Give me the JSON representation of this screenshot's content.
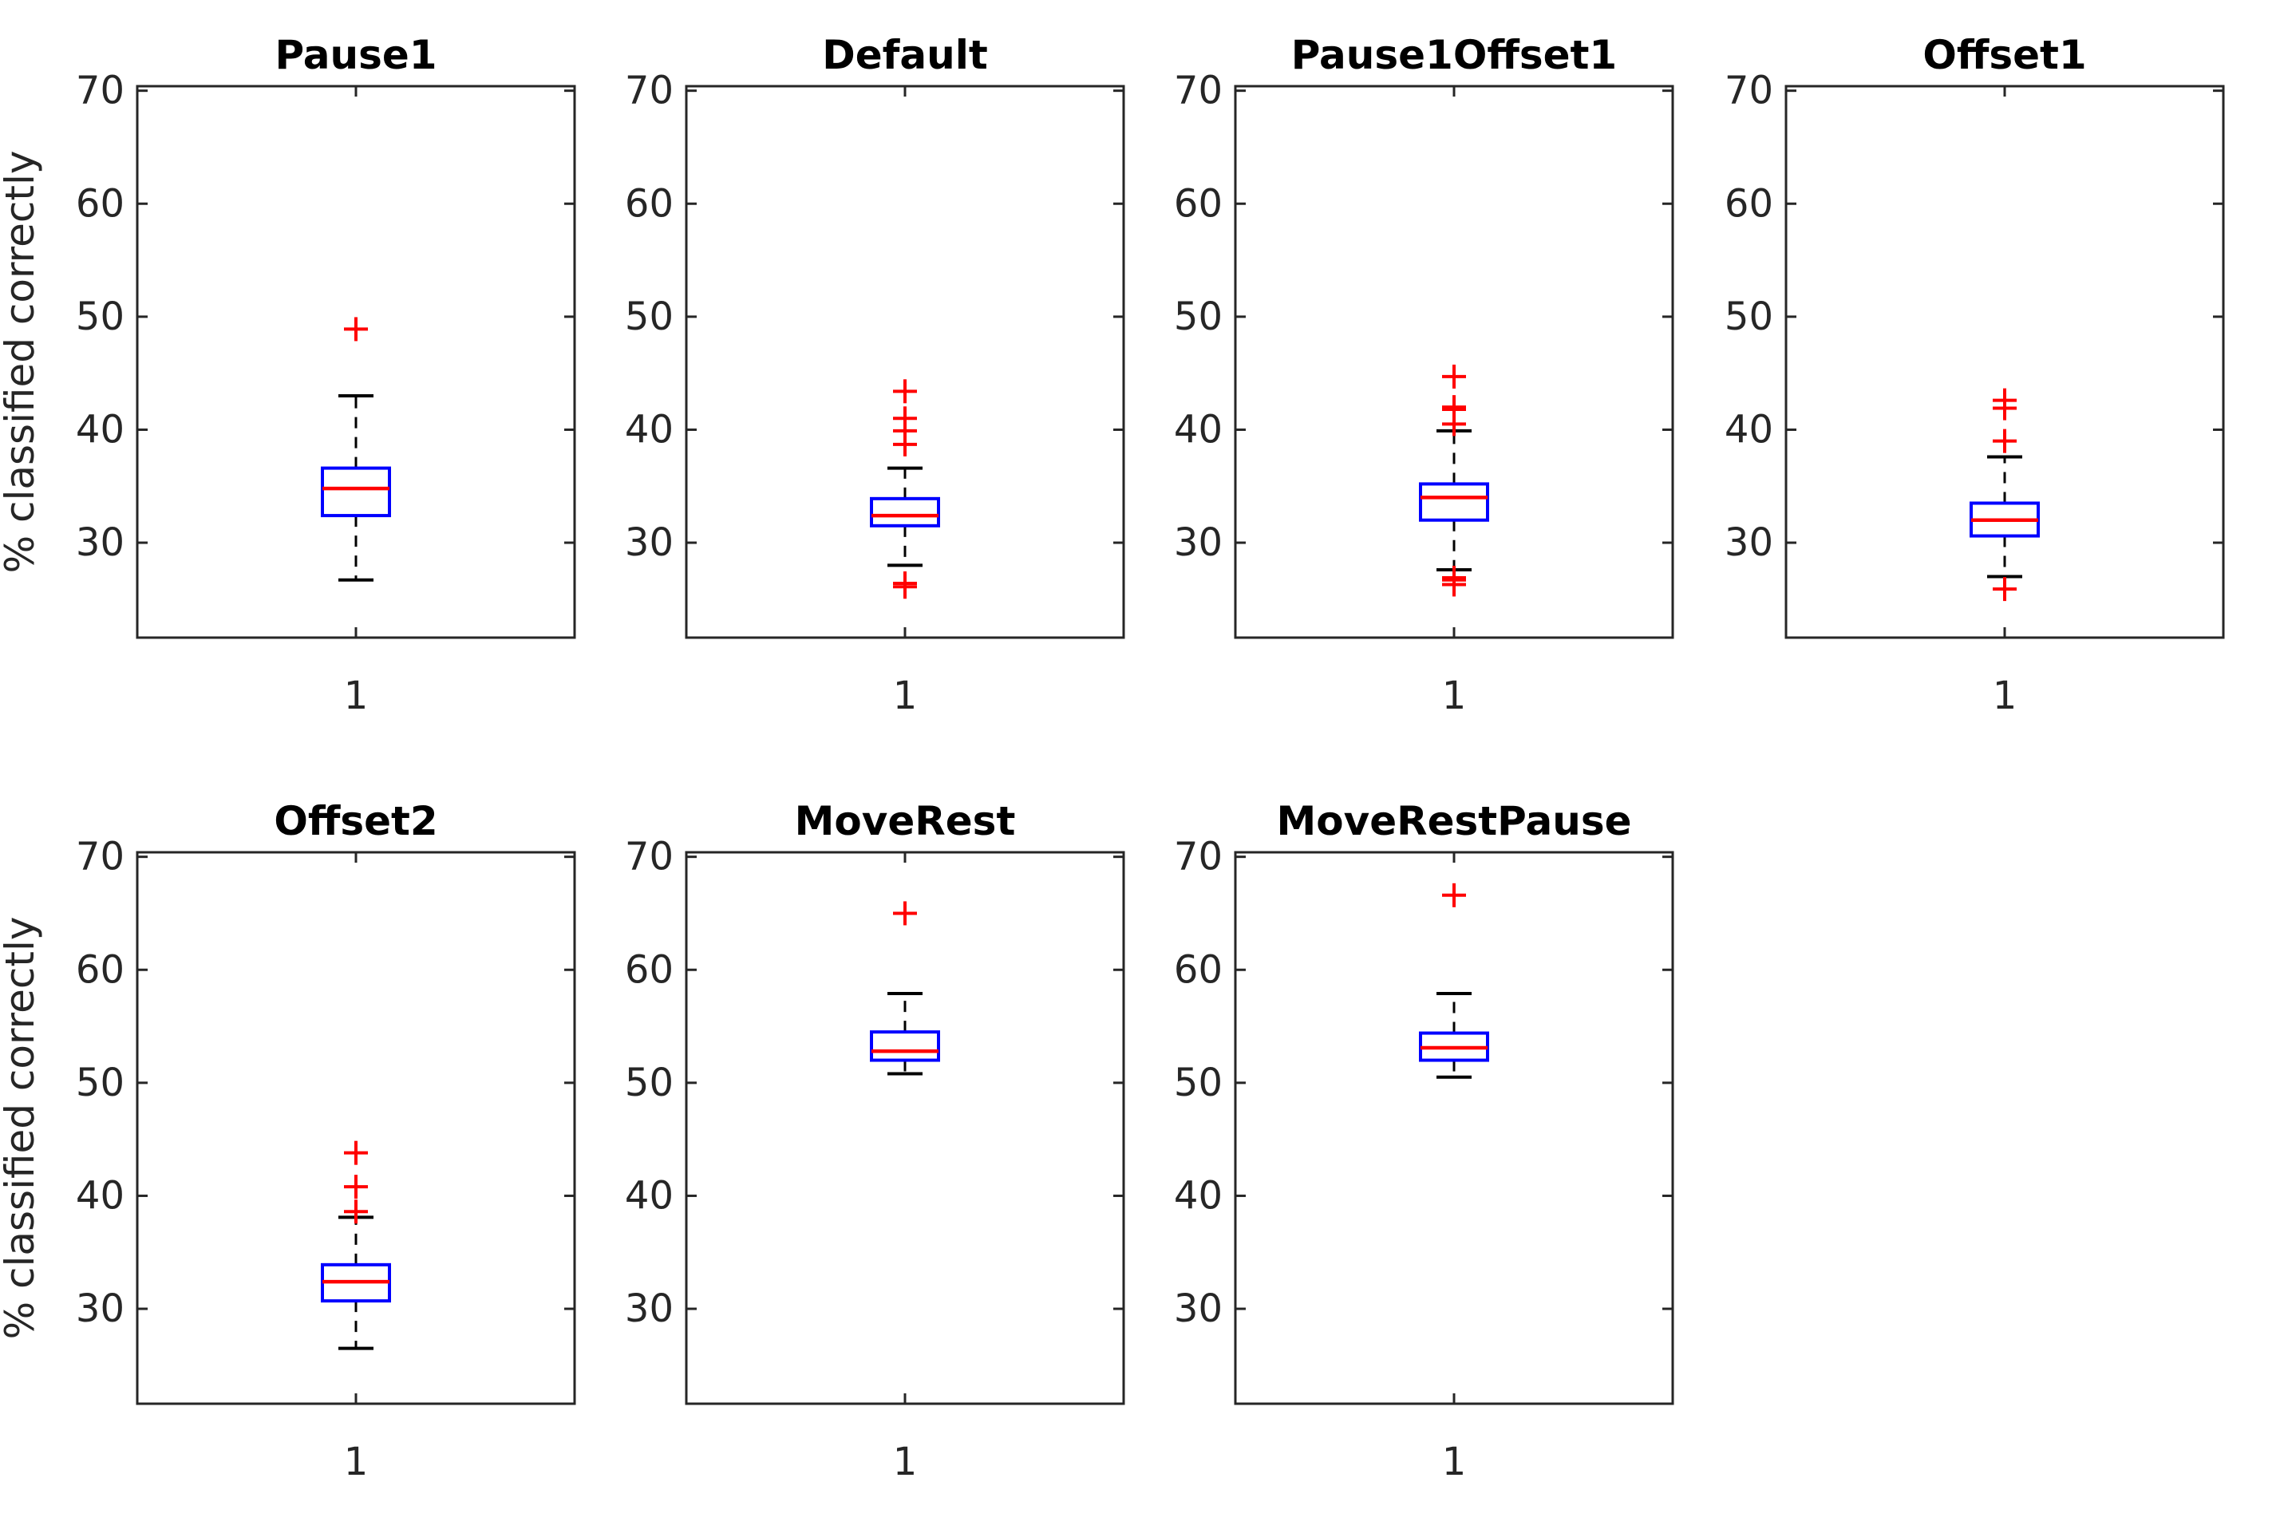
{
  "figure": {
    "background": "#ffffff",
    "ylabel": "% classified correctly",
    "xtick_label": "1",
    "ytick_labels": [
      "70",
      "60",
      "50",
      "40",
      "30"
    ]
  },
  "colors": {
    "box": "#0000ff",
    "median": "#ff0000",
    "outlier": "#ff0000",
    "whisker": "#000000",
    "cap": "#000000",
    "spine": "#262626",
    "tick_text": "#262626",
    "title_text": "#000000"
  },
  "chart_data": {
    "type": "boxplot-grid",
    "grid": [
      2,
      4
    ],
    "ylim": [
      21.6,
      70.4
    ],
    "yticks": [
      70,
      60,
      50,
      40,
      30
    ],
    "ylabel": "% classified correctly",
    "xtick_label": "1",
    "subplots": [
      {
        "title": "Pause1",
        "row": 0,
        "col": 0,
        "show_ylabel": true,
        "whisker_low": 26.7,
        "q1": 32.4,
        "median": 34.8,
        "q3": 36.6,
        "whisker_high": 43.0,
        "outliers_high": [
          48.9
        ],
        "outliers_low": []
      },
      {
        "title": "Default",
        "row": 0,
        "col": 1,
        "show_ylabel": false,
        "whisker_low": 28.0,
        "q1": 31.5,
        "median": 32.4,
        "q3": 33.9,
        "whisker_high": 36.6,
        "outliers_high": [
          43.4,
          41.0,
          39.9,
          38.7
        ],
        "outliers_low": [
          26.4,
          26.1
        ]
      },
      {
        "title": "Pause1Offset1",
        "row": 0,
        "col": 2,
        "show_ylabel": false,
        "whisker_low": 27.6,
        "q1": 32.0,
        "median": 34.0,
        "q3": 35.2,
        "whisker_high": 39.9,
        "outliers_high": [
          44.7,
          42.0,
          41.8,
          40.5
        ],
        "outliers_low": [
          26.9,
          26.7,
          26.3
        ]
      },
      {
        "title": "Offset1",
        "row": 0,
        "col": 3,
        "show_ylabel": false,
        "whisker_low": 27.0,
        "q1": 30.6,
        "median": 32.0,
        "q3": 33.5,
        "whisker_high": 37.6,
        "outliers_high": [
          42.6,
          41.9,
          39.0
        ],
        "outliers_low": [
          25.9
        ]
      },
      {
        "title": "Offset2",
        "row": 1,
        "col": 0,
        "show_ylabel": true,
        "whisker_low": 26.5,
        "q1": 30.7,
        "median": 32.4,
        "q3": 33.9,
        "whisker_high": 38.1,
        "outliers_high": [
          43.8,
          40.8,
          38.6
        ],
        "outliers_low": []
      },
      {
        "title": "MoveRest",
        "row": 1,
        "col": 1,
        "show_ylabel": false,
        "whisker_low": 50.8,
        "q1": 52.0,
        "median": 52.8,
        "q3": 54.5,
        "whisker_high": 57.9,
        "outliers_high": [
          65.0
        ],
        "outliers_low": []
      },
      {
        "title": "MoveRestPause",
        "row": 1,
        "col": 2,
        "show_ylabel": false,
        "whisker_low": 50.5,
        "q1": 52.0,
        "median": 53.1,
        "q3": 54.4,
        "whisker_high": 57.9,
        "outliers_high": [
          66.6
        ],
        "outliers_low": []
      }
    ]
  }
}
